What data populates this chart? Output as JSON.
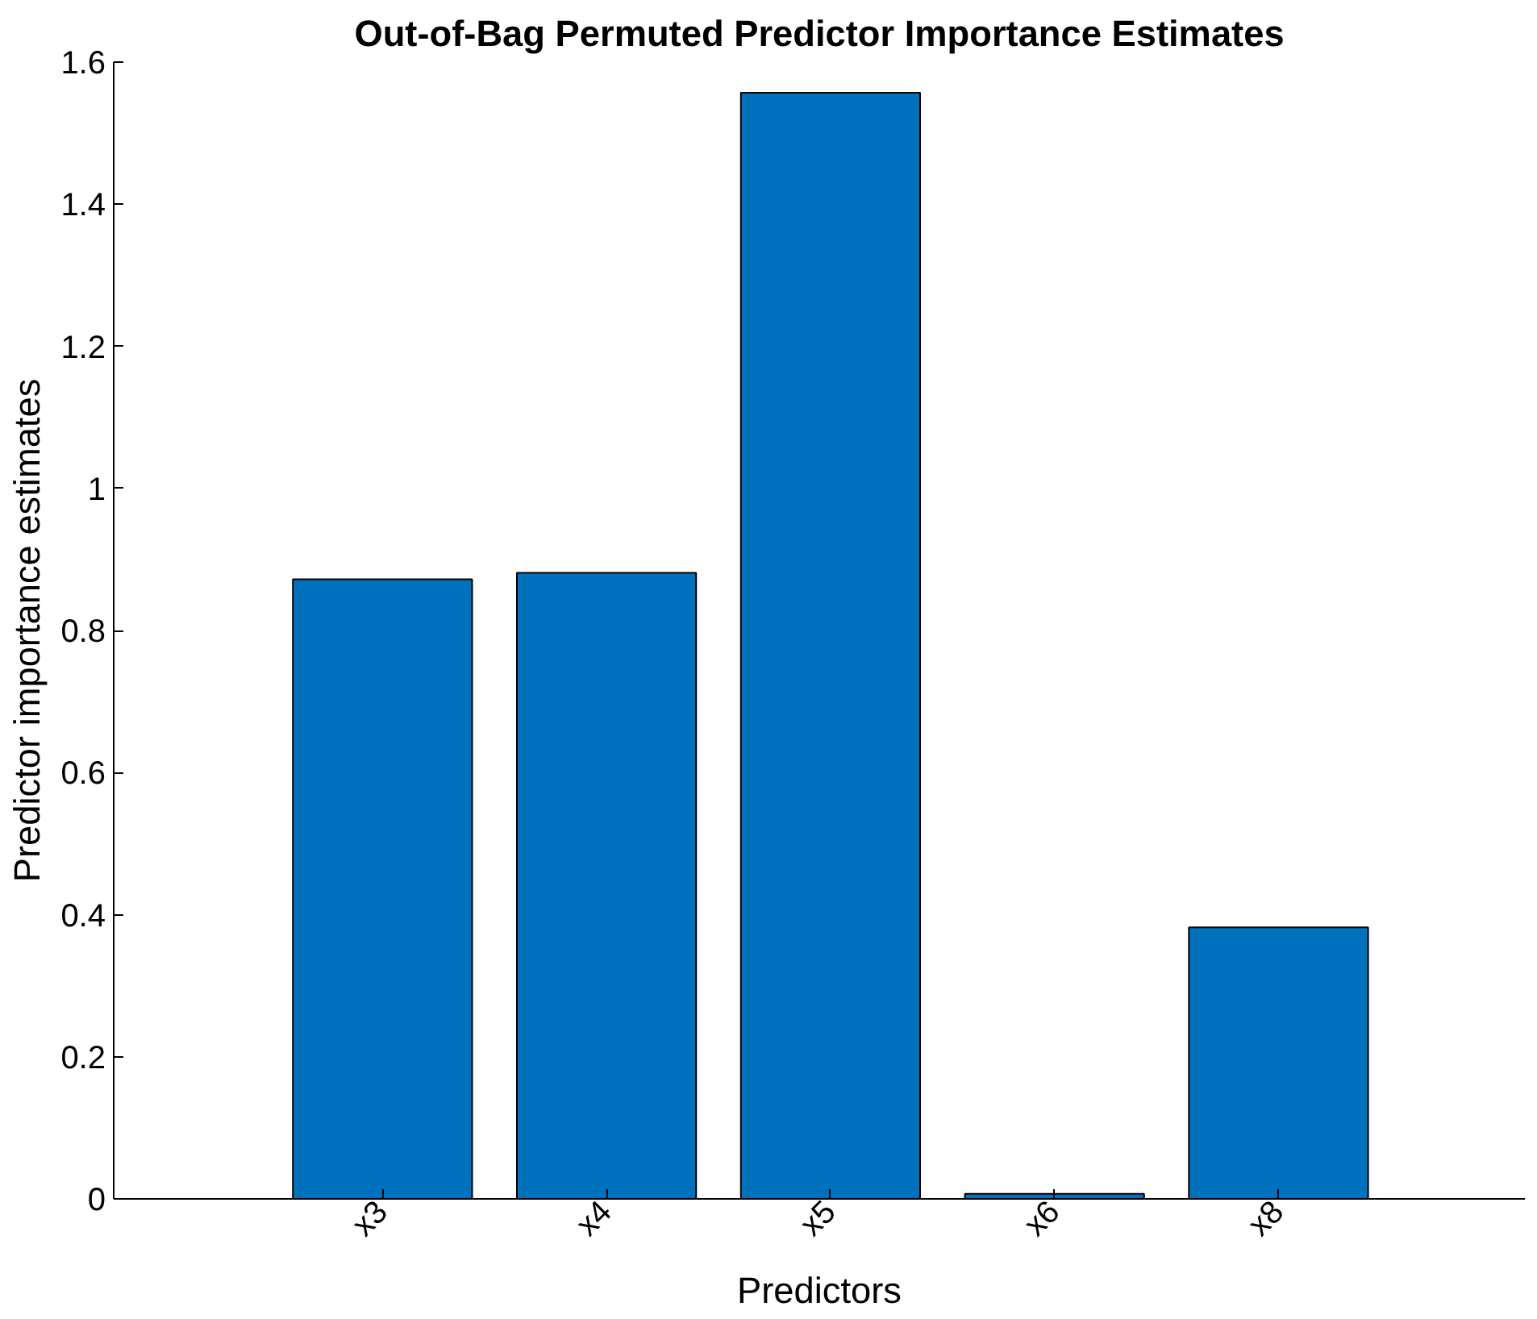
{
  "chart_data": {
    "type": "bar",
    "title": "Out-of-Bag Permuted Predictor Importance Estimates",
    "xlabel": "Predictors",
    "ylabel": "Predictor importance estimates",
    "categories": [
      "x3",
      "x4",
      "x5",
      "x6",
      "x8"
    ],
    "values": [
      0.872,
      0.881,
      1.557,
      0.007,
      0.382
    ],
    "color": "#0072bd",
    "ylim": [
      0,
      1.6
    ],
    "yticks": [
      0,
      0.2,
      0.4,
      0.6,
      0.8,
      {
        "value": 1,
        "label": "1"
      },
      1.2,
      1.4,
      1.6
    ],
    "grid": false
  }
}
